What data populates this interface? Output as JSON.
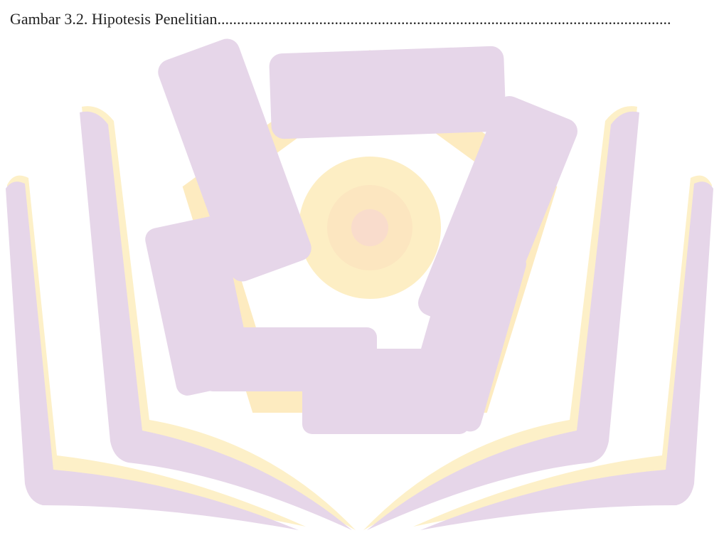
{
  "entry": {
    "title": "Gambar 3.2. Hipotesis Penelitian",
    "leader": "...................................................................................................................."
  }
}
